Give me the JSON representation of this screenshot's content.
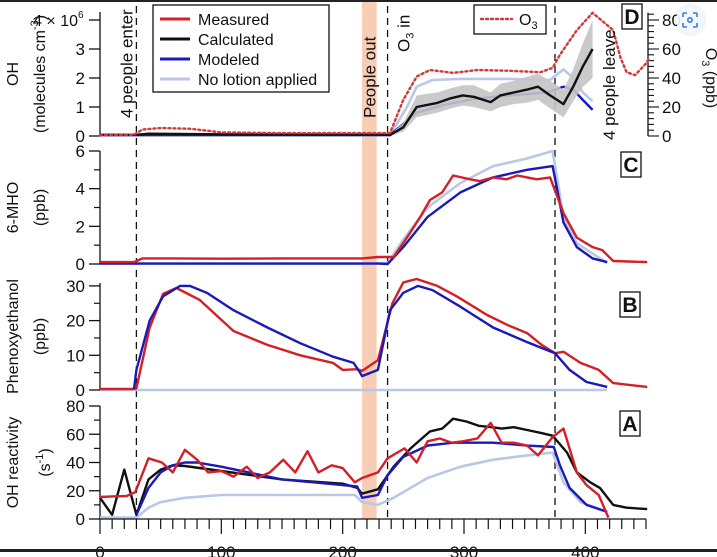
{
  "chart_data": {
    "type": "line",
    "title": "",
    "xlabel": "",
    "xlim": [
      0,
      450
    ],
    "x_ticks": [
      0,
      100,
      200,
      300,
      400
    ],
    "colors": {
      "measured": "#d41f26",
      "calculated": "#111111",
      "modeled": "#1a1ab8",
      "no_lotion": "#b9c8e6",
      "o3": "#d23a3a",
      "uncertainty_band": "#c4c4c4",
      "people_out_band": "#f8cdb5"
    },
    "legend": {
      "placement": "top-left",
      "entries": [
        {
          "key": "measured",
          "label": "Measured"
        },
        {
          "key": "calculated",
          "label": "Calculated"
        },
        {
          "key": "modeled",
          "label": "Modeled"
        },
        {
          "key": "no_lotion",
          "label": "No lotion applied"
        }
      ]
    },
    "o3_legend": {
      "label": "O",
      "sub": "3",
      "placement": "top-right"
    },
    "events": [
      {
        "type": "dashed",
        "x": 30,
        "label": "4 people enter"
      },
      {
        "type": "band",
        "x": [
          216,
          228
        ],
        "label": "People out"
      },
      {
        "type": "dashed",
        "x": 237,
        "label_main": "O",
        "label_sub": "3",
        "label_tail": " in"
      },
      {
        "type": "dashed",
        "x": 375,
        "label": "4 people leave"
      }
    ],
    "panels": [
      {
        "id": "D",
        "label": "D",
        "ylabel_line1": "OH",
        "ylabel_line2": "(molecules cm",
        "ylabel_sup": "-3",
        "ylabel_tail": ")",
        "ylim": [
          0,
          4.3
        ],
        "y_ticks": [
          0,
          1,
          2,
          3,
          4
        ],
        "y_tick_labels": [
          "0",
          "1",
          "2",
          "3",
          "4 × 10"
        ],
        "y_tick_sup": "6",
        "right_axis": {
          "label_main": "O",
          "label_sub": "3",
          "label_tail": " (ppb)",
          "ylim": [
            0,
            86
          ],
          "ticks": [
            0,
            20,
            40,
            60,
            80
          ],
          "tick_labels": [
            "0",
            "20",
            "40",
            "60",
            "80"
          ]
        },
        "series": [
          {
            "key": "no_lotion",
            "x": [
              0,
              30,
              100,
              216,
              229,
              239,
              253,
              261,
              274,
              297,
              338,
              371,
              382,
              390,
              398,
              406
            ],
            "y": [
              0.02,
              0.02,
              0.02,
              0.02,
              0.02,
              0.03,
              1.0,
              1.7,
              1.93,
              1.97,
              1.97,
              1.93,
              2.3,
              2.0,
              1.5,
              1.2
            ]
          },
          {
            "key": "modeled",
            "x": [
              0,
              30,
              100,
              216,
              229,
              239,
              261,
              283,
              311,
              338,
              368,
              382,
              390,
              398,
              406
            ],
            "y": [
              0.03,
              0.03,
              0.03,
              0.03,
              0.03,
              0.03,
              0.8,
              1.07,
              1.3,
              1.4,
              1.5,
              1.7,
              1.6,
              1.24,
              0.9
            ]
          },
          {
            "key": "calculated",
            "x": [
              0,
              30,
              40,
              100,
              216,
              229,
              239,
              250,
              261,
              278,
              289,
              299,
              308,
              322,
              330,
              341,
              352,
              361,
              371,
              382,
              390,
              398,
              406
            ],
            "y": [
              0.04,
              0.04,
              0.08,
              0.06,
              0.05,
              0.05,
              0.03,
              0.3,
              1.0,
              1.14,
              1.3,
              1.4,
              1.35,
              1.17,
              1.4,
              1.5,
              1.6,
              1.7,
              1.4,
              1.1,
              1.7,
              2.4,
              3.0
            ],
            "band_lower": [
              0.02,
              0.02,
              0.05,
              0.04,
              0.03,
              0.03,
              0.01,
              0.15,
              0.65,
              0.8,
              0.95,
              1.05,
              1.0,
              0.85,
              1.0,
              1.1,
              1.15,
              1.25,
              0.95,
              0.65,
              1.2,
              1.7,
              2.0
            ],
            "band_upper": [
              0.06,
              0.06,
              0.11,
              0.08,
              0.07,
              0.07,
              0.05,
              0.45,
              1.4,
              1.5,
              1.65,
              1.75,
              1.75,
              1.5,
              1.8,
              1.9,
              2.05,
              2.15,
              1.9,
              1.6,
              2.3,
              3.2,
              4.0
            ]
          },
          {
            "key": "o3",
            "axis": "right",
            "dashed": true,
            "x": [
              0,
              28,
              35,
              50,
              75,
              100,
              150,
              216,
              229,
              239,
              250,
              261,
              272,
              291,
              311,
              338,
              363,
              373,
              379,
              393,
              406,
              423,
              429,
              434,
              441,
              450,
              453
            ],
            "y": [
              0.5,
              0.8,
              4.5,
              5.5,
              5,
              2.5,
              2,
              2,
              2,
              2,
              25,
              41,
              45.5,
              43.5,
              45.5,
              45,
              44,
              47,
              56,
              73,
              85,
              73,
              54,
              44,
              42,
              50,
              54
            ]
          }
        ]
      },
      {
        "id": "C",
        "label": "C",
        "ylabel_line1": "6-MHO",
        "ylabel_line2": "(ppb)",
        "ylim": [
          0,
          6
        ],
        "y_ticks": [
          0,
          2,
          4,
          6
        ],
        "y_minor": [
          1,
          3,
          5
        ],
        "y_tick_labels": [
          "0",
          "2",
          "4",
          "6"
        ],
        "series": [
          {
            "key": "no_lotion",
            "x": [
              0,
              216,
              229,
              237,
              250,
              270,
              297,
              324,
              352,
              373,
              377,
              382,
              393,
              418
            ],
            "y": [
              0.02,
              0.02,
              0.05,
              0.05,
              1.3,
              3.0,
              4.3,
              5.2,
              5.6,
              6.0,
              4.5,
              2.5,
              1.1,
              0.05
            ]
          },
          {
            "key": "modeled",
            "x": [
              0,
              216,
              229,
              237,
              250,
              270,
              297,
              324,
              352,
              373,
              377,
              382,
              393,
              406,
              418
            ],
            "y": [
              0.02,
              0.02,
              0.02,
              0.0,
              0.9,
              2.5,
              3.8,
              4.6,
              5.0,
              5.2,
              3.9,
              2.2,
              0.9,
              0.3,
              0.1
            ]
          },
          {
            "key": "measured",
            "x": [
              0,
              28,
              35,
              60,
              100,
              150,
              216,
              229,
              242,
              253,
              264,
              272,
              282,
              291,
              305,
              313,
              324,
              335,
              344,
              352,
              360,
              371,
              375,
              382,
              393,
              406,
              414,
              423,
              451
            ],
            "y": [
              0.1,
              0.1,
              0.3,
              0.3,
              0.28,
              0.3,
              0.3,
              0.37,
              0.37,
              1.4,
              2.5,
              3.4,
              3.8,
              4.7,
              4.5,
              4.4,
              4.6,
              4.5,
              4.7,
              4.6,
              4.5,
              4.6,
              3.9,
              2.7,
              1.4,
              0.9,
              0.74,
              0.16,
              0.1
            ]
          }
        ]
      },
      {
        "id": "B",
        "label": "B",
        "ylabel_line1": "Phenoxyethanol",
        "ylabel_line2": "(ppb)",
        "ylim": [
          0,
          32
        ],
        "y_ticks": [
          0,
          10,
          20,
          30
        ],
        "y_minor": [
          5,
          15,
          25
        ],
        "y_tick_labels": [
          "0",
          "10",
          "20",
          "30"
        ],
        "series": [
          {
            "key": "no_lotion",
            "x": [
              0,
              418
            ],
            "y": [
              0,
              0
            ]
          },
          {
            "key": "measured",
            "x": [
              0,
              28,
              30,
              41,
              52,
              63,
              82,
              110,
              138,
              165,
              192,
              200,
              212,
              216,
              229,
              241,
              250,
              261,
              278,
              294,
              319,
              336,
              352,
              364,
              375,
              382,
              396,
              411,
              423,
              451
            ],
            "y": [
              0.3,
              0.3,
              0.5,
              18,
              27.7,
              29.4,
              26,
              17,
              13,
              10,
              7.8,
              5.8,
              6,
              5.5,
              8.6,
              25,
              31,
              32,
              30,
              27,
              21.6,
              18.7,
              16.4,
              13,
              10.6,
              11,
              7.8,
              5.8,
              2,
              0.9
            ]
          },
          {
            "key": "modeled",
            "x": [
              28,
              30,
              41,
              52,
              66,
              74,
              88,
              110,
              138,
              165,
              192,
              209,
              214,
              216,
              229,
              239,
              250,
              262,
              274,
              297,
              324,
              352,
              375,
              387,
              401,
              418
            ],
            "y": [
              0.3,
              5.8,
              20,
              27,
              30,
              30,
              28,
              23,
              18,
              13.5,
              9.6,
              7.8,
              5.2,
              4,
              5.8,
              23,
              28,
              30,
              28.8,
              24,
              18,
              13.8,
              10.6,
              5.8,
              2.3,
              0.9
            ]
          }
        ]
      },
      {
        "id": "A",
        "label": "A",
        "ylabel_line1": "OH reactivity",
        "ylabel_line2": "(s",
        "ylabel_sup": "-1",
        "ylabel_tail": ")",
        "ylim": [
          0,
          80
        ],
        "y_ticks": [
          0,
          20,
          40,
          60,
          80
        ],
        "y_minor": [
          10,
          30,
          50,
          70
        ],
        "y_tick_labels": [
          "0",
          "20",
          "40",
          "60",
          "80"
        ],
        "series": [
          {
            "key": "no_lotion",
            "x": [
              0,
              30,
              40,
              50,
              70,
              100,
              210,
              216,
              229,
              242,
              270,
              297,
              324,
              352,
              373,
              382,
              396,
              418
            ],
            "y": [
              1,
              1,
              8,
              12,
              15,
              17,
              17,
              12,
              10,
              15,
              29,
              37,
              42,
              45,
              47,
              26,
              12,
              5
            ]
          },
          {
            "key": "calculated",
            "x": [
              0,
              10,
              20,
              30,
              40,
              50,
              60,
              70,
              100,
              150,
              200,
              212,
              216,
              229,
              242,
              256,
              272,
              282,
              291,
              302,
              312,
              323,
              331,
              341,
              352,
              363,
              373,
              385,
              393,
              404,
              412,
              423,
              434,
              451
            ],
            "y": [
              15,
              3,
              35,
              3,
              28,
              35,
              38,
              37.5,
              34,
              28,
              25,
              22,
              18,
              21,
              37,
              50,
              62,
              64,
              71,
              69,
              66,
              65,
              64,
              65,
              63,
              61,
              59,
              47,
              33,
              26,
              22,
              10,
              8,
              7
            ]
          },
          {
            "key": "modeled",
            "x": [
              30,
              40,
              50,
              60,
              70,
              80,
              100,
              150,
              200,
              212,
              216,
              229,
              237,
              250,
              270,
              291,
              324,
              352,
              374,
              379,
              387,
              401,
              418
            ],
            "y": [
              3,
              22,
              33,
              38,
              40,
              40,
              37,
              28,
              24,
              23,
              15,
              17,
              31,
              44,
              52,
              54,
              54,
              52,
              51,
              38,
              22,
              10,
              5
            ]
          },
          {
            "key": "measured",
            "x": [
              0,
              10,
              22,
              29,
              40,
              51,
              60,
              70,
              80,
              89,
              100,
              110,
              121,
              130,
              140,
              151,
              161,
              171,
              180,
              191,
              200,
              210,
              216,
              229,
              237,
              251,
              261,
              270,
              280,
              290,
              299,
              311,
              322,
              331,
              341,
              352,
              361,
              373,
              382,
              393,
              401,
              411,
              419
            ],
            "y": [
              15.6,
              16,
              16.3,
              19,
              43,
              40,
              33,
              49,
              42,
              33,
              34,
              30,
              37,
              29,
              33,
              42,
              33,
              48,
              33,
              38,
              36,
              26,
              29,
              33,
              43,
              50,
              40,
              55,
              57,
              54,
              55,
              57,
              68,
              54,
              54,
              52,
              45,
              58,
              64,
              33,
              24,
              17,
              1
            ]
          }
        ]
      }
    ]
  },
  "overlay": {
    "lens_button_icon": "lens-scan-icon"
  }
}
